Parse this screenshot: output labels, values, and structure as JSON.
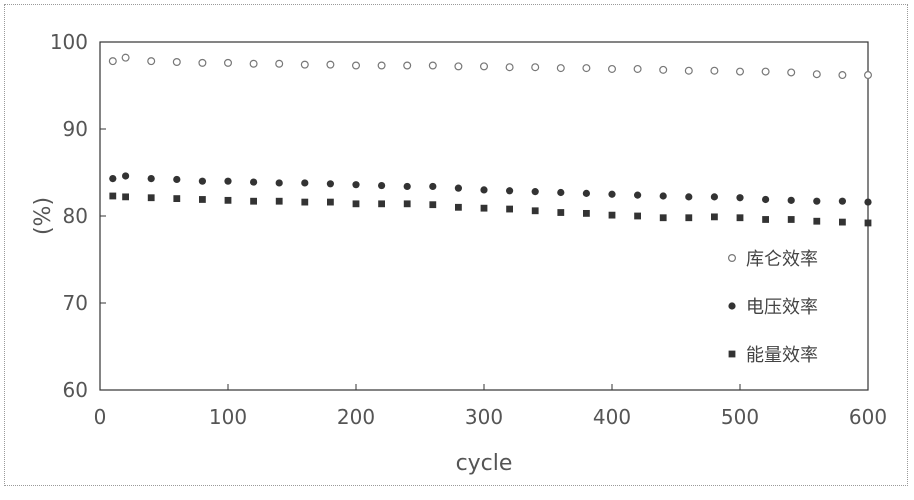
{
  "chart_data": {
    "type": "scatter",
    "xlabel": "cycle",
    "ylabel": "(%)",
    "xlim": [
      0,
      600
    ],
    "ylim": [
      60,
      100
    ],
    "xticks": [
      "0",
      "100",
      "200",
      "300",
      "400",
      "500",
      "600"
    ],
    "yticks": [
      "60",
      "70",
      "80",
      "90",
      "100"
    ],
    "grid": false,
    "legend_position": "right",
    "series": [
      {
        "name": "库仑效率",
        "marker": "open-circle",
        "color": "#777777",
        "x": [
          10,
          20,
          40,
          60,
          80,
          100,
          120,
          140,
          160,
          180,
          200,
          220,
          240,
          260,
          280,
          300,
          320,
          340,
          360,
          380,
          400,
          420,
          440,
          460,
          480,
          500,
          520,
          540,
          560,
          580,
          600
        ],
        "y": [
          97.8,
          98.2,
          97.8,
          97.7,
          97.6,
          97.6,
          97.5,
          97.5,
          97.4,
          97.4,
          97.3,
          97.3,
          97.3,
          97.3,
          97.2,
          97.2,
          97.1,
          97.1,
          97.0,
          97.0,
          96.9,
          96.9,
          96.8,
          96.7,
          96.7,
          96.6,
          96.6,
          96.5,
          96.3,
          96.2,
          96.2
        ]
      },
      {
        "name": "电压效率",
        "marker": "filled-circle",
        "color": "#333333",
        "x": [
          10,
          20,
          40,
          60,
          80,
          100,
          120,
          140,
          160,
          180,
          200,
          220,
          240,
          260,
          280,
          300,
          320,
          340,
          360,
          380,
          400,
          420,
          440,
          460,
          480,
          500,
          520,
          540,
          560,
          580,
          600
        ],
        "y": [
          84.3,
          84.6,
          84.3,
          84.2,
          84.0,
          84.0,
          83.9,
          83.8,
          83.8,
          83.7,
          83.6,
          83.5,
          83.4,
          83.4,
          83.2,
          83.0,
          82.9,
          82.8,
          82.7,
          82.6,
          82.5,
          82.4,
          82.3,
          82.2,
          82.2,
          82.1,
          81.9,
          81.8,
          81.7,
          81.7,
          81.6
        ]
      },
      {
        "name": "能量效率",
        "marker": "filled-square",
        "color": "#333333",
        "x": [
          10,
          20,
          40,
          60,
          80,
          100,
          120,
          140,
          160,
          180,
          200,
          220,
          240,
          260,
          280,
          300,
          320,
          340,
          360,
          380,
          400,
          420,
          440,
          460,
          480,
          500,
          520,
          540,
          560,
          580,
          600
        ],
        "y": [
          82.3,
          82.2,
          82.1,
          82.0,
          81.9,
          81.8,
          81.7,
          81.7,
          81.6,
          81.6,
          81.4,
          81.4,
          81.4,
          81.3,
          81.0,
          80.9,
          80.8,
          80.6,
          80.4,
          80.3,
          80.1,
          80.0,
          79.8,
          79.8,
          79.9,
          79.8,
          79.6,
          79.6,
          79.4,
          79.3,
          79.2
        ]
      }
    ]
  }
}
